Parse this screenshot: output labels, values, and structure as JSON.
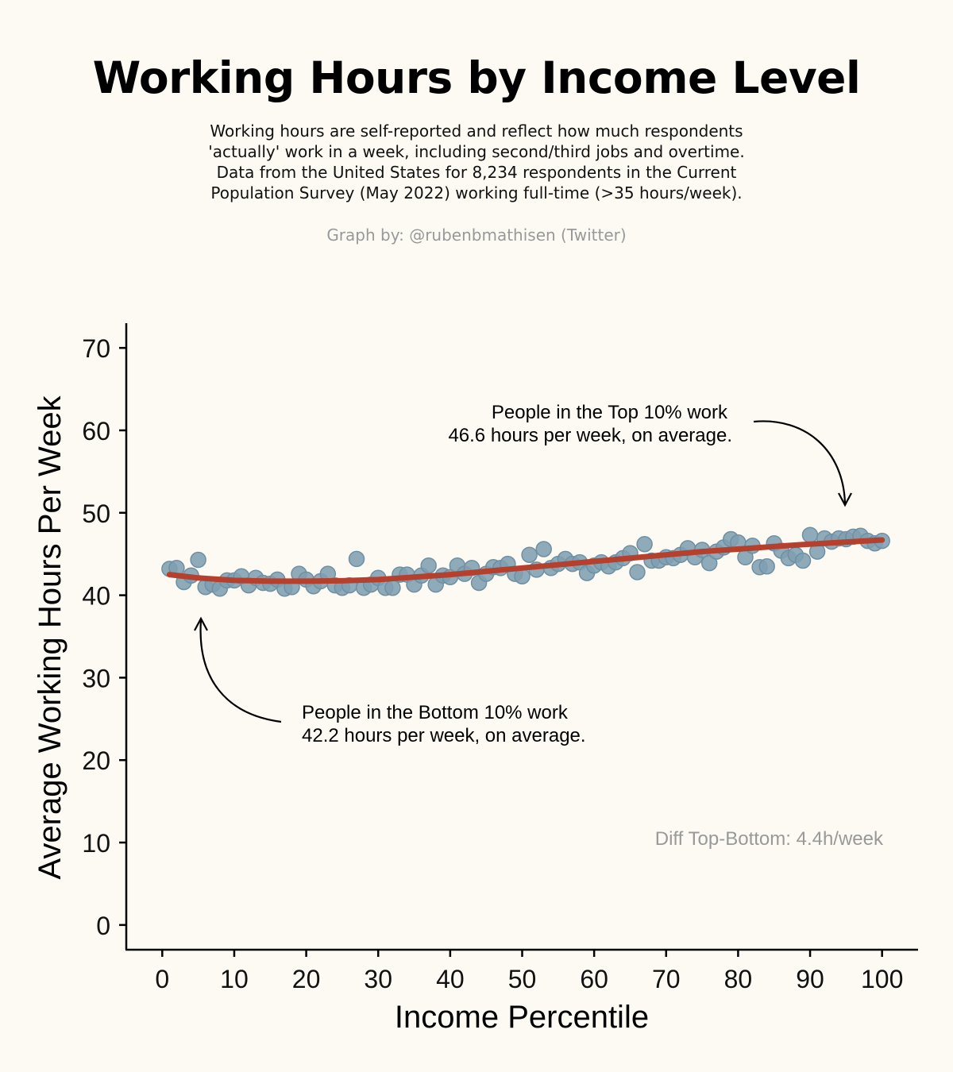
{
  "title": "Working Hours by Income Level",
  "subtitle_lines": [
    "Working hours are self-reported and reflect how much respondents",
    "'actually' work in a week, including second/third jobs and overtime.",
    "Data from the United States for 8,234 respondents in the Current",
    "Population Survey (May 2022) working full-time (>35 hours/week)."
  ],
  "credit": "Graph by: @rubenbmathisen (Twitter)",
  "colors": {
    "background": "#fcfaf3",
    "points": "#7f9fb2",
    "points_edge": "#6f8fa3",
    "trend": "#b5402e",
    "annotation_note": "#999999"
  },
  "annotations": {
    "top_line1": "People in the Top 10% work",
    "top_line2": "46.6 hours per week, on average.",
    "bottom_line1": "People in the Bottom 10% work",
    "bottom_line2": "42.2 hours per week, on average.",
    "diff": "Diff Top-Bottom: 4.4h/week"
  },
  "chart_data": {
    "type": "scatter",
    "xlabel": "Income Percentile",
    "ylabel": "Average Working Hours Per Week",
    "xlim": [
      -5,
      105
    ],
    "ylim": [
      -3,
      73
    ],
    "xticks": [
      0,
      10,
      20,
      30,
      40,
      50,
      60,
      70,
      80,
      90,
      100
    ],
    "yticks": [
      0,
      10,
      20,
      30,
      40,
      50,
      60,
      70
    ],
    "grid": false,
    "points": {
      "x": [
        1,
        2,
        3,
        4,
        5,
        6,
        7,
        8,
        9,
        10,
        11,
        12,
        13,
        14,
        15,
        16,
        17,
        18,
        19,
        20,
        21,
        22,
        23,
        24,
        25,
        26,
        27,
        28,
        29,
        30,
        31,
        32,
        33,
        34,
        35,
        36,
        37,
        38,
        39,
        40,
        41,
        42,
        43,
        44,
        45,
        46,
        47,
        48,
        49,
        50,
        51,
        52,
        53,
        54,
        55,
        56,
        57,
        58,
        59,
        60,
        61,
        62,
        63,
        64,
        65,
        66,
        67,
        68,
        69,
        70,
        71,
        72,
        73,
        74,
        75,
        76,
        77,
        78,
        79,
        80,
        81,
        82,
        83,
        84,
        85,
        86,
        87,
        88,
        89,
        90,
        91,
        92,
        93,
        94,
        95,
        96,
        97,
        98,
        99,
        100
      ],
      "y": [
        43.2,
        43.3,
        41.6,
        42.4,
        44.3,
        41.0,
        41.3,
        40.8,
        41.8,
        41.8,
        42.3,
        41.2,
        42.1,
        41.5,
        41.4,
        41.9,
        40.8,
        41.0,
        42.6,
        41.9,
        41.1,
        41.7,
        42.6,
        41.2,
        40.9,
        41.2,
        44.4,
        40.9,
        41.3,
        42.1,
        40.9,
        40.9,
        42.5,
        42.5,
        41.3,
        42.4,
        43.6,
        41.3,
        42.4,
        42.2,
        43.6,
        42.6,
        43.3,
        41.5,
        42.6,
        43.4,
        43.3,
        43.8,
        42.6,
        42.3,
        44.9,
        43.1,
        45.6,
        43.3,
        43.8,
        44.4,
        43.8,
        44.0,
        42.7,
        43.6,
        44.0,
        43.5,
        44.0,
        44.5,
        45.1,
        42.8,
        46.2,
        44.2,
        44.2,
        44.6,
        44.5,
        44.9,
        45.7,
        44.6,
        45.5,
        43.9,
        45.3,
        45.8,
        46.8,
        46.4,
        44.6,
        46.0,
        43.4,
        43.5,
        46.3,
        45.4,
        44.5,
        44.9,
        44.2,
        47.3,
        45.3,
        46.9,
        46.5,
        46.9,
        46.8,
        47.1,
        47.2,
        46.6,
        46.3,
        46.6
      ]
    },
    "trend": {
      "x": [
        1,
        5,
        10,
        15,
        20,
        25,
        30,
        35,
        40,
        45,
        50,
        55,
        60,
        65,
        70,
        75,
        80,
        85,
        90,
        95,
        100
      ],
      "y": [
        42.5,
        42.1,
        41.8,
        41.7,
        41.7,
        41.75,
        41.9,
        42.2,
        42.5,
        42.9,
        43.3,
        43.7,
        44.1,
        44.5,
        44.9,
        45.3,
        45.6,
        45.9,
        46.2,
        46.45,
        46.7
      ]
    }
  }
}
